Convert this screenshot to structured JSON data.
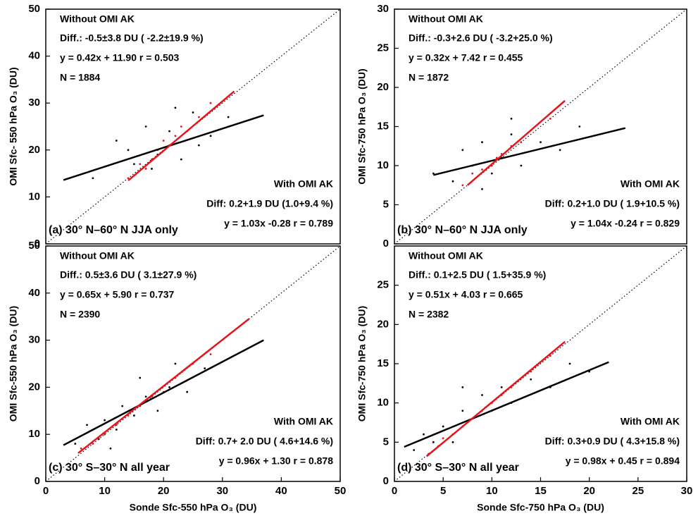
{
  "chart_data": [
    {
      "type": "scatter",
      "ylabel": "OMI Sfc- 550 hPa O₃ (DU)",
      "xlim": [
        0,
        50
      ],
      "ylim": [
        0,
        50
      ],
      "yticks": [
        0,
        10,
        20,
        30,
        40,
        50
      ],
      "panel_label": "(a) 30° N–60° N JJA only",
      "series": [
        {
          "name": "Without OMI AK",
          "color": "#000000",
          "x": [
            8,
            12,
            15,
            17,
            19,
            21,
            23,
            25,
            28,
            31,
            14,
            26,
            18,
            22
          ],
          "values": [
            14,
            22,
            17,
            25,
            19,
            24,
            18,
            28,
            23,
            27,
            20,
            21,
            16,
            29
          ],
          "stats": [
            "Diff.:  -0.5±3.8 DU ( -2.2±19.9 %)",
            "y = 0.42x + 11.90 r = 0.503",
            "N =  1884"
          ],
          "fit": {
            "x": [
              3,
              37
            ],
            "values": [
              13.6,
              27.4
            ]
          }
        },
        {
          "name": "With OMI AK",
          "color": "#e8141c",
          "x": [
            14,
            16,
            18,
            19,
            20,
            21,
            22,
            24,
            26,
            28,
            17,
            23
          ],
          "values": [
            14,
            17,
            18,
            20,
            22,
            21,
            23,
            24,
            27,
            30,
            16,
            25
          ],
          "stats": [
            "Diff:   0.2+1.9 DU (1.0+9.4 %)",
            "y = 1.03x -0.28 r = 0.789"
          ],
          "fit": {
            "x": [
              14,
              32
            ],
            "values": [
              13.5,
              32.5
            ]
          }
        }
      ]
    },
    {
      "type": "scatter",
      "ylabel": "OMI Sfc-750 hPa O₃ (DU)",
      "xlim": [
        0,
        30
      ],
      "ylim": [
        0,
        30
      ],
      "yticks": [
        0,
        5,
        10,
        15,
        20,
        25,
        30
      ],
      "panel_label": "(b) 30° N–60° N JJA only",
      "series": [
        {
          "name": "Without OMI AK",
          "color": "#000000",
          "x": [
            4,
            6,
            7,
            8,
            9,
            10,
            11,
            12,
            13,
            15,
            17,
            19,
            9,
            12
          ],
          "values": [
            9,
            8,
            12,
            10,
            13,
            9,
            11,
            14,
            10,
            13,
            12,
            15,
            7,
            16
          ],
          "stats": [
            "Diff.:  -0.3+2.6 DU ( -3.2+25.0 %)",
            "y = 0.32x + 7.42 r = 0.455",
            "N =  1872"
          ],
          "fit": {
            "x": [
              4,
              23.7
            ],
            "values": [
              8.8,
              14.8
            ]
          }
        },
        {
          "name": "With OMI AK",
          "color": "#e8141c",
          "x": [
            7,
            8,
            9,
            10,
            10.5,
            11,
            12,
            13,
            14,
            16
          ],
          "values": [
            7.5,
            9,
            9.5,
            10,
            11,
            11.5,
            12.5,
            13,
            14.5,
            16
          ],
          "stats": [
            "Diff:   0.2+1.0 DU ( 1.9+10.5 %)",
            "y = 1.04x -0.24 r = 0.829"
          ],
          "fit": {
            "x": [
              7.5,
              17.5
            ],
            "values": [
              7.5,
              18.3
            ]
          }
        }
      ]
    },
    {
      "type": "scatter",
      "ylabel": "OMI Sfc-550 hPa O₃ (DU)",
      "xlabel": "Sonde Sfc-550 hPa O₃ (DU)",
      "xlim": [
        0,
        50
      ],
      "ylim": [
        0,
        50
      ],
      "xticks": [
        0,
        10,
        20,
        30,
        40,
        50
      ],
      "yticks": [
        0,
        10,
        20,
        30,
        40,
        50
      ],
      "panel_label": "(c) 30° S–30° N all year",
      "series": [
        {
          "name": "Without OMI AK",
          "color": "#000000",
          "x": [
            5,
            7,
            9,
            10,
            12,
            13,
            15,
            17,
            19,
            21,
            24,
            27,
            11,
            16,
            22
          ],
          "values": [
            8,
            12,
            9,
            13,
            11,
            16,
            14,
            18,
            15,
            20,
            19,
            24,
            7,
            22,
            25
          ],
          "stats": [
            "Diff.:  0.5±3.6 DU (  3.1±27.9 %)",
            "y = 0.65x + 5.90 r = 0.737",
            "N =  2390"
          ],
          "fit": {
            "x": [
              3,
              37
            ],
            "values": [
              7.7,
              30
            ]
          }
        },
        {
          "name": "With OMI AK",
          "color": "#e8141c",
          "x": [
            6,
            8,
            10,
            12,
            14,
            16,
            18,
            20,
            22,
            25,
            28
          ],
          "values": [
            7,
            8,
            10,
            12,
            14,
            16,
            18,
            19,
            22,
            25,
            27
          ],
          "stats": [
            "Diff:   0.7+ 2.0 DU (  4.6+14.6 %)",
            "y = 0.96x + 1.30 r = 0.878"
          ],
          "fit": {
            "x": [
              5.5,
              34.5
            ],
            "values": [
              6,
              34.5
            ]
          }
        }
      ]
    },
    {
      "type": "scatter",
      "ylabel": "OMI Sfc-750 hPa O₃ (DU)",
      "xlabel": "Sonde Sfc-750 hPa O₃ (DU)",
      "xlim": [
        0,
        30
      ],
      "ylim": [
        0,
        30
      ],
      "xticks": [
        0,
        5,
        10,
        15,
        20,
        25,
        30
      ],
      "yticks": [
        0,
        5,
        10,
        15,
        20,
        25
      ],
      "panel_label": "(d) 30° S–30° N all year",
      "series": [
        {
          "name": "Without OMI AK",
          "color": "#000000",
          "x": [
            2,
            3,
            4,
            5,
            6,
            7,
            8,
            9,
            10,
            11,
            12,
            14,
            16,
            18,
            20,
            7
          ],
          "values": [
            4,
            6,
            5,
            7,
            5,
            9,
            8,
            11,
            9,
            12,
            10,
            13,
            12,
            15,
            14,
            12
          ],
          "stats": [
            "Diff.:  0.1+2.5 DU (  1.5+35.9 %)",
            "y = 0.51x + 4.03 r = 0.665",
            "N =  2382"
          ],
          "fit": {
            "x": [
              1,
              22
            ],
            "values": [
              4.4,
              15.2
            ]
          }
        },
        {
          "name": "With OMI AK",
          "color": "#e8141c",
          "x": [
            3.5,
            4.5,
            5,
            6,
            7,
            8,
            9,
            10,
            11,
            12,
            14,
            16
          ],
          "values": [
            3.5,
            4.5,
            5.5,
            6,
            7,
            8,
            9,
            10,
            11,
            12,
            14,
            16
          ],
          "stats": [
            "Diff:   0.3+0.9 DU (  4.3+15.8 %)",
            "y = 0.98x + 0.45 r = 0.894"
          ],
          "fit": {
            "x": [
              3.3,
              17.5
            ],
            "values": [
              3.2,
              17.8
            ]
          }
        }
      ]
    }
  ]
}
